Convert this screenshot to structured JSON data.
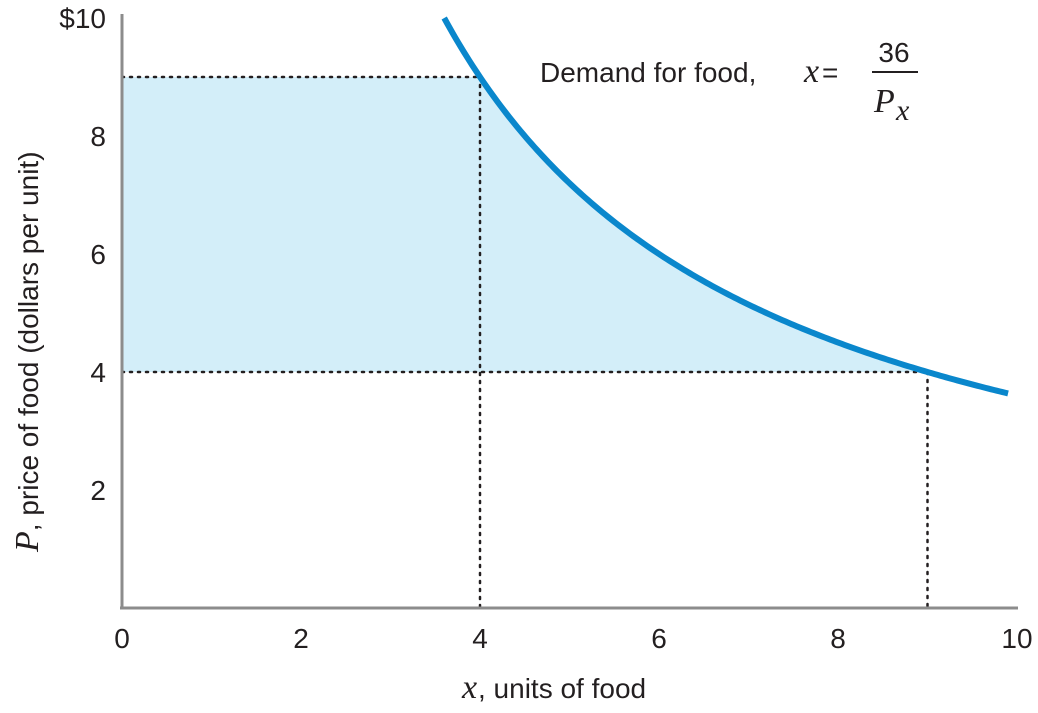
{
  "chart_data": {
    "type": "line",
    "xlabel": {
      "var": "x",
      "rest": ", units of food"
    },
    "ylabel": {
      "var": "P",
      "rest": ", price of food (dollars per unit)"
    },
    "xlim": [
      0,
      10
    ],
    "ylim": [
      0,
      10
    ],
    "x_ticks": [
      "0",
      "2",
      "4",
      "6",
      "8",
      "10"
    ],
    "y_ticks": [
      "$10",
      "8",
      "6",
      "4",
      "2"
    ],
    "y_tick_values": [
      10,
      8,
      6,
      4,
      2
    ],
    "x_tick_values": [
      0,
      2,
      4,
      6,
      8,
      10
    ],
    "series": [
      {
        "constant": 36,
        "x_range": [
          3.6,
          9.9
        ],
        "color": "#0a87cc"
      }
    ],
    "annotation": {
      "prefix": "Demand for food, ",
      "var": "x",
      "eq": " = ",
      "numerator": "36",
      "denominator_var": "P",
      "denominator_sub": "x"
    },
    "reference_lines": [
      {
        "x": 4,
        "y": 9
      },
      {
        "x": 9,
        "y": 4
      }
    ],
    "shaded_region": {
      "y_low": 4,
      "y_high": 9,
      "color": "#d3eef9"
    },
    "grid": false
  }
}
